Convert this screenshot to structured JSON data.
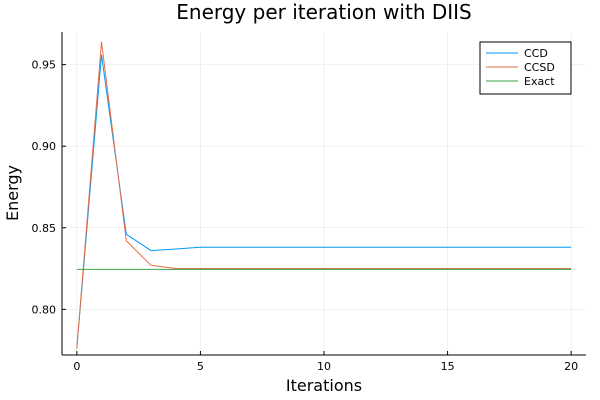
{
  "chart_data": {
    "type": "line",
    "title": "Energy per iteration with DIIS",
    "xlabel": "Iterations",
    "ylabel": "Energy",
    "xlim": [
      -0.6,
      20.6
    ],
    "ylim": [
      0.772,
      0.97
    ],
    "xticks": [
      0,
      5,
      10,
      15,
      20
    ],
    "yticks": [
      0.8,
      0.85,
      0.9,
      0.95
    ],
    "xtick_labels": [
      "0",
      "5",
      "10",
      "15",
      "20"
    ],
    "ytick_labels": [
      "0.80",
      "0.85",
      "0.90",
      "0.95"
    ],
    "grid": true,
    "legend_position": "top-right",
    "series": [
      {
        "name": "CCD",
        "color": "#009af9",
        "x": [
          0,
          1,
          2,
          3,
          4,
          5,
          6,
          7,
          8,
          9,
          10,
          11,
          12,
          13,
          14,
          15,
          16,
          17,
          18,
          19,
          20
        ],
        "y": [
          0.776,
          0.956,
          0.846,
          0.836,
          0.837,
          0.838,
          0.838,
          0.838,
          0.838,
          0.838,
          0.838,
          0.838,
          0.838,
          0.838,
          0.838,
          0.838,
          0.838,
          0.838,
          0.838,
          0.838,
          0.838
        ]
      },
      {
        "name": "CCSD",
        "color": "#e26f46",
        "x": [
          0,
          1,
          2,
          3,
          4,
          5,
          6,
          7,
          8,
          9,
          10,
          11,
          12,
          13,
          14,
          15,
          16,
          17,
          18,
          19,
          20
        ],
        "y": [
          0.776,
          0.964,
          0.842,
          0.827,
          0.825,
          0.825,
          0.825,
          0.825,
          0.825,
          0.825,
          0.825,
          0.825,
          0.825,
          0.825,
          0.825,
          0.825,
          0.825,
          0.825,
          0.825,
          0.825,
          0.825
        ]
      },
      {
        "name": "Exact",
        "color": "#3da44d",
        "x": [
          0,
          20
        ],
        "y": [
          0.8245,
          0.8245
        ]
      }
    ]
  }
}
